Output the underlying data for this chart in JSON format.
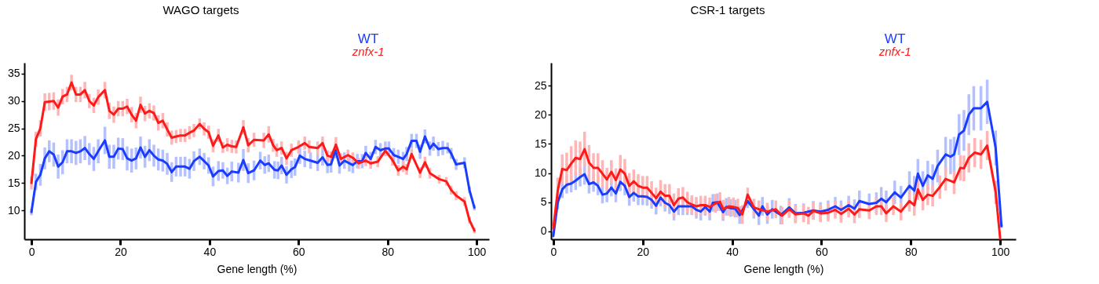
{
  "chart_data": [
    {
      "type": "line",
      "title": "WAGO targets",
      "xlabel": "Gene length (%)",
      "xlim": [
        -1.6,
        102.8
      ],
      "ylim": [
        4.7,
        37
      ],
      "xticks": [
        0,
        20,
        40,
        60,
        80,
        100
      ],
      "yticks": [
        10,
        15,
        20,
        25,
        30,
        35
      ],
      "legend": "top right",
      "series": [
        {
          "name": "WT",
          "color": "#1a3cff",
          "x": [
            0,
            1,
            2,
            3,
            4,
            5,
            6,
            7,
            8,
            9,
            10,
            11,
            12,
            13,
            14,
            15,
            16.5,
            17.5,
            18.5,
            19.5,
            20.5,
            21.5,
            22.5,
            23.5,
            24.5,
            25.5,
            26.5,
            27.5,
            28.5,
            29.5,
            30.5,
            31.5,
            32.5,
            33.5,
            34.5,
            35.5,
            36.5,
            37.8,
            38.8,
            39.8,
            40.8,
            42,
            43,
            44,
            45,
            46.5,
            47.6,
            48.7,
            50,
            51.4,
            52.4,
            53.3,
            54.6,
            55.4,
            56.2,
            57.3,
            58.4,
            59.2,
            60.3,
            61.4,
            62.7,
            64.3,
            65.4,
            66.5,
            67.3,
            68.3,
            69.2,
            70.3,
            71.4,
            72.2,
            73.2,
            74.3,
            75.1,
            76.2,
            77.3,
            78.4,
            79.5,
            80.3,
            81.4,
            82.4,
            83.5,
            84.3,
            85.4,
            86.5,
            87.3,
            88.4,
            89.5,
            90.3,
            91.4,
            92.4,
            93.5,
            94.3,
            95.4,
            97.3,
            98.4,
            99.5
          ],
          "values": [
            9.7,
            15.2,
            16.5,
            19.5,
            20.8,
            20.2,
            18,
            18.8,
            20.8,
            20.8,
            20.5,
            20.8,
            21.4,
            20.3,
            19.4,
            20.8,
            22.8,
            19.8,
            19.8,
            21.3,
            21.2,
            19.5,
            19.1,
            19.5,
            21.5,
            19.8,
            21,
            20,
            19.3,
            19.1,
            18.5,
            17,
            18,
            18,
            18,
            17.6,
            19,
            19.8,
            19,
            18.2,
            16.2,
            17.2,
            17.3,
            16.3,
            17.1,
            16.9,
            19.2,
            16.8,
            17.3,
            19.1,
            18.3,
            18.6,
            17.4,
            17.3,
            18.2,
            16.5,
            17.5,
            17.9,
            20,
            19.4,
            19.1,
            18.7,
            19.7,
            18.3,
            18.4,
            21,
            18.2,
            19.1,
            18.6,
            18.3,
            19,
            19,
            20.5,
            19.4,
            21.6,
            21,
            21.3,
            21.3,
            20.1,
            19.8,
            19.4,
            20.3,
            22.7,
            22.7,
            20.7,
            23.5,
            21.3,
            22.2,
            21.2,
            21.4,
            21.4,
            20.4,
            18.4,
            18.7,
            13.7,
            10.5
          ],
          "errors": [
            0.6,
            1.5,
            2,
            2,
            2,
            2.2,
            2.2,
            2.2,
            2.2,
            2.2,
            2.2,
            2.2,
            2.2,
            2,
            2.2,
            2.2,
            2.5,
            2.2,
            2.2,
            2,
            2,
            2.2,
            2.2,
            2,
            2,
            2,
            2,
            2,
            2,
            2,
            2,
            1.8,
            1.8,
            1.8,
            1.8,
            1.8,
            1.8,
            1.5,
            1.5,
            1.5,
            1.8,
            1.8,
            1.5,
            1.5,
            1.8,
            1.8,
            2,
            1.8,
            1.8,
            1.6,
            1.6,
            1.6,
            1.6,
            1.6,
            1.6,
            1.6,
            1.6,
            1.6,
            1.5,
            1.5,
            1.5,
            1.5,
            1.5,
            1.5,
            1.5,
            1.5,
            1.5,
            1.5,
            1.5,
            1.5,
            1.3,
            1.3,
            1.3,
            1.3,
            1.3,
            1.3,
            1.3,
            1.3,
            1.3,
            1.3,
            1.3,
            1.3,
            1.3,
            1.3,
            1.3,
            1.3,
            1.3,
            1.3,
            1.3,
            1.3,
            1,
            1,
            1,
            1,
            0.6,
            0.5
          ]
        },
        {
          "name": "znfx-1",
          "color": "#ff1a1a",
          "x": [
            0,
            1,
            2,
            3,
            4,
            5,
            6,
            7,
            8,
            9,
            10,
            11,
            12,
            13,
            14,
            15,
            16.5,
            17.5,
            18.5,
            19.5,
            20.5,
            21.5,
            22.5,
            23.5,
            24.5,
            25.5,
            26.5,
            27.5,
            28.5,
            29.5,
            30.5,
            31.5,
            32.5,
            33.5,
            34.5,
            35.5,
            36.5,
            37.8,
            38.8,
            39.8,
            40.8,
            42,
            43,
            44,
            45,
            46,
            47.6,
            48.7,
            50,
            52.2,
            53.3,
            54.3,
            55.1,
            56.2,
            57.3,
            58.4,
            60,
            61.4,
            62.4,
            64.3,
            65.4,
            66.5,
            67.3,
            68.4,
            69.5,
            71.1,
            72.2,
            73.5,
            75.1,
            76.2,
            77.8,
            79.5,
            81.1,
            82.4,
            83.5,
            84.3,
            85.4,
            87.3,
            88.4,
            89.5,
            91.6,
            93.2,
            94.3,
            95.4,
            97.3,
            98.4,
            99.5
          ],
          "values": [
            15,
            23,
            25,
            29.8,
            29.9,
            30,
            28.8,
            30.8,
            31.2,
            33.4,
            31.2,
            31.2,
            32,
            30,
            29.2,
            30.7,
            32,
            28.2,
            27.5,
            28.6,
            28.6,
            29,
            27.5,
            26.4,
            29.3,
            27.7,
            28.2,
            27.8,
            26,
            26.4,
            24.8,
            23.3,
            23.5,
            23.7,
            23.7,
            24.2,
            24.6,
            25.8,
            24.9,
            24.3,
            21.8,
            23.7,
            21.5,
            22,
            21.7,
            21.6,
            25.2,
            21.9,
            22.9,
            22.8,
            23.9,
            21.9,
            21,
            21.4,
            19.5,
            21,
            21.6,
            22.3,
            21.6,
            21.4,
            22.3,
            20,
            19.8,
            22,
            19.4,
            20.1,
            19.6,
            18.6,
            19.1,
            18.6,
            18.9,
            20.9,
            19.2,
            17.3,
            18,
            17.5,
            20.3,
            16.9,
            18.8,
            16.8,
            15.7,
            15.3,
            13.7,
            12.7,
            11.6,
            8.2,
            6.3
          ],
          "errors": [
            1.2,
            1.4,
            1.5,
            1.6,
            1.6,
            1.6,
            1.5,
            1.4,
            1.4,
            1.4,
            1.4,
            1.4,
            1.5,
            1.3,
            1.4,
            1.4,
            1.5,
            1.5,
            1.5,
            1.4,
            1.4,
            1.4,
            1.4,
            1.4,
            1.5,
            1.4,
            1.4,
            1.4,
            1.4,
            1.4,
            1.3,
            1.3,
            1.2,
            1.2,
            1.2,
            1.2,
            1.2,
            1,
            1.2,
            1.2,
            1.2,
            1.2,
            1,
            1.2,
            1.2,
            1.2,
            1.3,
            1.3,
            1.3,
            1.4,
            1.5,
            1.2,
            1.2,
            1.2,
            1.2,
            1.2,
            1.2,
            1.2,
            1.2,
            1.2,
            1.2,
            1,
            1,
            1.4,
            1,
            1,
            1,
            1,
            1,
            1,
            1,
            1,
            1,
            1,
            1,
            1,
            1,
            1,
            1,
            1,
            0.8,
            0.8,
            0.8,
            0.8,
            0.8,
            0.6,
            0.5
          ]
        }
      ]
    },
    {
      "type": "line",
      "title": "CSR-1 targets",
      "xlabel": "Gene length (%)",
      "xlim": [
        -0.5,
        103.5
      ],
      "ylim": [
        -1.35,
        28.9
      ],
      "xticks": [
        0,
        20,
        40,
        60,
        80,
        100
      ],
      "yticks": [
        0,
        5,
        10,
        15,
        20,
        25
      ],
      "legend": "top right",
      "series": [
        {
          "name": "WT",
          "color": "#1a3cff",
          "x": [
            0,
            1,
            2,
            3,
            4,
            5,
            6,
            7,
            8,
            9,
            10,
            11,
            12,
            13,
            14,
            15,
            16,
            17,
            18,
            19,
            20,
            21,
            22,
            23,
            24,
            25,
            26,
            27,
            28,
            29,
            30,
            31,
            32,
            33,
            34,
            35,
            35.7,
            36.7,
            38,
            38.7,
            39.7,
            40.7,
            41.7,
            43.5,
            44.9,
            46,
            46.8,
            47.9,
            49,
            50.9,
            52.8,
            54.2,
            56,
            58.2,
            59.8,
            61.5,
            63.1,
            64.4,
            66.1,
            67.4,
            68.5,
            70.7,
            72.3,
            73.4,
            74.5,
            76.4,
            77.8,
            79.7,
            80.8,
            81.6,
            82.7,
            83.8,
            84.9,
            86,
            87.8,
            88.9,
            89.7,
            90.8,
            91.9,
            93,
            94.1,
            95.7,
            97.1,
            99,
            100.3
          ],
          "values": [
            -0.8,
            5,
            7.2,
            8,
            8.2,
            8.7,
            9.3,
            9.8,
            8.1,
            8.4,
            7.8,
            6.3,
            6.5,
            7.5,
            6.5,
            8.5,
            7.8,
            5.9,
            6.6,
            6,
            6,
            5.9,
            5.4,
            4.4,
            5.8,
            4.9,
            4.5,
            3.4,
            4.3,
            4.3,
            4.3,
            4.3,
            3.7,
            3.4,
            4.2,
            3.4,
            4.9,
            5,
            3.3,
            4.2,
            4,
            3.9,
            2.8,
            5.2,
            3.8,
            2.7,
            4.3,
            2.9,
            3.8,
            2.8,
            4.1,
            3.1,
            3.2,
            3.6,
            3.4,
            3.7,
            4.3,
            3.7,
            4.5,
            3.9,
            5.2,
            4.7,
            4.9,
            5.6,
            5,
            6.7,
            5.8,
            7.8,
            7,
            9.9,
            7.8,
            9.6,
            9,
            11.2,
            13.2,
            12.8,
            13.2,
            16.6,
            17.3,
            20,
            21.1,
            21.1,
            22.2,
            14.3,
            0.9
          ],
          "errors": [
            null,
            1.2,
            1.5,
            1.5,
            1.5,
            1.6,
            1.6,
            1.8,
            1.6,
            1.6,
            1.6,
            1.5,
            1.5,
            1.5,
            1.5,
            1.6,
            1.6,
            1.5,
            1.5,
            1.5,
            1.5,
            1.5,
            1.5,
            1.5,
            1.5,
            1.5,
            1.5,
            1.5,
            1.5,
            1.5,
            1.5,
            1.5,
            1.5,
            1.5,
            1.5,
            1.5,
            1.5,
            1.5,
            1.5,
            1.5,
            1.5,
            1.5,
            1.5,
            1.2,
            1.6,
            1.6,
            1.6,
            1.6,
            1.6,
            1.6,
            1.6,
            1.6,
            1.6,
            1.6,
            1.6,
            1.6,
            1.6,
            1.6,
            1.6,
            1.6,
            1.8,
            1.8,
            1.8,
            2,
            2,
            2,
            2,
            2.5,
            2.5,
            2.5,
            2.5,
            2.5,
            2.5,
            2.8,
            3,
            3,
            3,
            3.5,
            3.5,
            3.5,
            3.8,
            3.8,
            3.8,
            3,
            0.3
          ]
        },
        {
          "name": "znfx-1",
          "color": "#ff1a1a",
          "x": [
            0,
            1,
            2,
            3,
            4,
            5,
            6,
            7,
            8,
            9,
            10,
            11,
            12,
            13,
            14,
            15,
            16,
            17,
            18,
            19,
            20,
            21,
            22,
            23,
            24,
            25,
            26,
            27,
            28,
            29,
            30,
            31,
            32,
            33,
            34,
            35,
            36.3,
            37.3,
            38,
            39.3,
            40.3,
            41.3,
            42.3,
            43.5,
            44.9,
            46,
            47.9,
            49.8,
            51.2,
            52.8,
            54.2,
            56,
            57.1,
            58.2,
            59.8,
            61.5,
            63.1,
            64.4,
            66.1,
            67.4,
            68.5,
            70.7,
            72.3,
            73.4,
            74.5,
            76.1,
            77.8,
            79.7,
            80.8,
            81.6,
            82.7,
            83.8,
            84.9,
            86.5,
            87.8,
            89.7,
            91.1,
            91.9,
            93,
            94.3,
            95.7,
            97.1,
            99,
            100
          ],
          "values": [
            0.5,
            7,
            10.7,
            10.5,
            11.6,
            12.6,
            12.4,
            14.1,
            11.8,
            10.9,
            10.9,
            9.9,
            8.9,
            10.2,
            8.8,
            10.6,
            9.9,
            7.8,
            8.6,
            7.8,
            7.5,
            7.5,
            6.6,
            5.7,
            6.8,
            6.1,
            6.1,
            4.5,
            5.6,
            5.8,
            5,
            4.6,
            4.3,
            4.5,
            4.5,
            4.2,
            4.8,
            5.1,
            3.8,
            4.3,
            4.2,
            4,
            2.9,
            6.3,
            4.1,
            3.8,
            3.4,
            3.8,
            2.7,
            3.8,
            2.9,
            3.1,
            2.7,
            3.5,
            3.1,
            3.2,
            3.7,
            3,
            3.9,
            2.9,
            3.8,
            3.6,
            4.3,
            4.3,
            3.1,
            4.3,
            3.4,
            5.2,
            4.5,
            7.2,
            5.4,
            6.3,
            6.1,
            7.6,
            9,
            8.4,
            10.9,
            10.8,
            12.6,
            13.5,
            13.2,
            14.7,
            6.7,
            -1.2
          ],
          "errors": [
            0.5,
            2.2,
            2.5,
            3,
            3,
            3,
            3,
            3,
            3,
            2.5,
            2.5,
            2.3,
            2,
            2,
            2,
            2.5,
            2.5,
            2.2,
            2,
            2,
            2,
            2,
            2,
            1.8,
            2,
            2,
            2,
            2,
            1.8,
            1.8,
            1.8,
            1.6,
            1.6,
            1.6,
            1.6,
            1.6,
            1.6,
            1.6,
            1.6,
            1.6,
            1.6,
            1.6,
            1.6,
            1.2,
            1.5,
            1.5,
            1.5,
            1.5,
            1.5,
            1.5,
            1.5,
            1.5,
            1.5,
            1.5,
            1.5,
            1.5,
            1.5,
            1.5,
            1.5,
            1.5,
            1.5,
            1.5,
            1.5,
            1.5,
            1.5,
            1.5,
            1.5,
            1.8,
            1.8,
            1.8,
            1.8,
            1.8,
            1.8,
            2,
            2,
            2,
            2.2,
            2.2,
            2.5,
            2.5,
            2.5,
            2.5,
            2,
            null
          ]
        }
      ]
    }
  ]
}
